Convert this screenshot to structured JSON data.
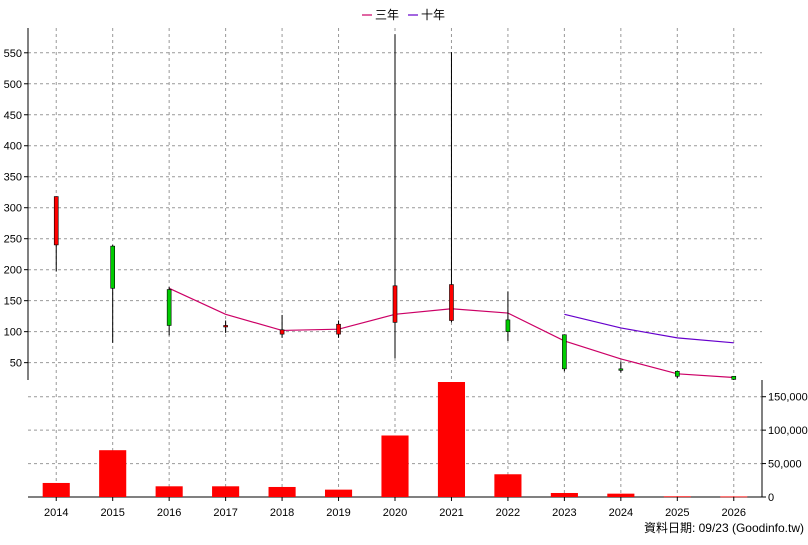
{
  "chart_data": {
    "type": "candlestick",
    "legend": {
      "placement": "top-center",
      "entries": [
        {
          "name": "三年",
          "color": "#cc0066"
        },
        {
          "name": "十年",
          "color": "#6600cc"
        }
      ]
    },
    "categories": [
      "2014",
      "2015",
      "2016",
      "2017",
      "2018",
      "2019",
      "2020",
      "2021",
      "2022",
      "2023",
      "2024",
      "2025",
      "2026"
    ],
    "price_axis": {
      "ylim": [
        22,
        590
      ],
      "ticks": [
        50,
        100,
        150,
        200,
        250,
        300,
        350,
        400,
        450,
        500,
        550
      ],
      "position": "left",
      "grid": true
    },
    "candles": [
      {
        "x": "2014",
        "open": 240,
        "close": 318,
        "high": 318,
        "low": 197
      },
      {
        "x": "2015",
        "open": 238,
        "close": 170,
        "high": 240,
        "low": 82
      },
      {
        "x": "2016",
        "open": 168,
        "close": 110,
        "high": 172,
        "low": 94
      },
      {
        "x": "2017",
        "open": 108,
        "close": 110,
        "high": 118,
        "low": 98
      },
      {
        "x": "2018",
        "open": 96,
        "close": 103,
        "high": 127,
        "low": 90
      },
      {
        "x": "2019",
        "open": 96,
        "close": 112,
        "high": 118,
        "low": 90
      },
      {
        "x": "2020",
        "open": 115,
        "close": 174,
        "high": 580,
        "low": 57
      },
      {
        "x": "2021",
        "open": 118,
        "close": 176,
        "high": 551,
        "low": 115
      },
      {
        "x": "2022",
        "open": 119,
        "close": 100,
        "high": 165,
        "low": 85
      },
      {
        "x": "2023",
        "open": 95,
        "close": 40,
        "high": 95,
        "low": 36
      },
      {
        "x": "2024",
        "open": 40,
        "close": 39,
        "high": 52,
        "low": 34
      },
      {
        "x": "2025",
        "open": 36,
        "close": 28,
        "high": 37,
        "low": 25
      },
      {
        "x": "2026",
        "open": 28,
        "close": 23,
        "high": 28,
        "low": 22
      }
    ],
    "series": [
      {
        "name": "三年",
        "color": "#cc0066",
        "x": [
          "2016",
          "2017",
          "2018",
          "2019",
          "2020",
          "2021",
          "2022",
          "2023",
          "2024",
          "2025",
          "2026"
        ],
        "values": [
          170,
          128,
          102,
          104,
          128,
          137,
          130,
          85,
          56,
          32,
          26
        ]
      },
      {
        "name": "十年",
        "color": "#6600cc",
        "x": [
          "2023",
          "2024",
          "2025",
          "2026"
        ],
        "values": [
          128,
          106,
          90,
          82
        ]
      }
    ],
    "volume": {
      "ylim": [
        0,
        175000
      ],
      "ticks": [
        0,
        50000,
        100000,
        150000
      ],
      "tick_labels": [
        "0",
        "50,000",
        "100,000",
        "150,000"
      ],
      "position": "right",
      "color": "#ff0000",
      "values": [
        21000,
        70000,
        16000,
        16000,
        15000,
        11000,
        92000,
        172000,
        34000,
        6000,
        5000,
        1000,
        800
      ]
    },
    "footer": "資料日期: 09/23 (Goodinfo.tw)"
  }
}
